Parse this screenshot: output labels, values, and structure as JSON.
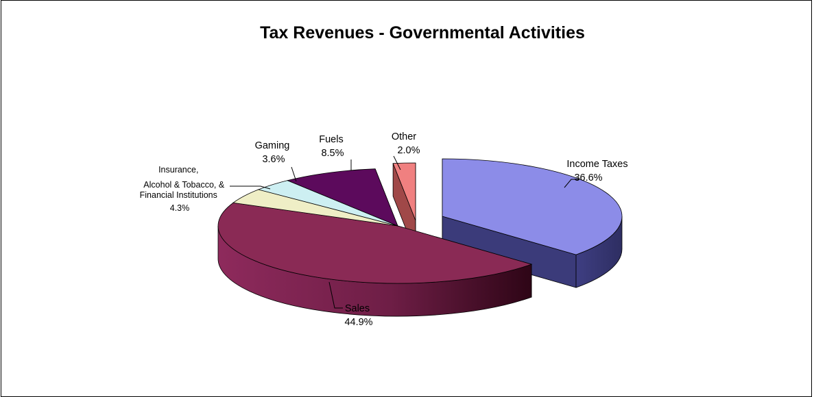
{
  "chart_data": {
    "type": "pie",
    "title": "Tax Revenues - Governmental Activities",
    "three_d": true,
    "slices": [
      {
        "label_lines": [
          "Income Taxes"
        ],
        "value_text": "36.6%",
        "value": 36.6,
        "color": "#8c8ce8",
        "side_color": "#3b3b7a",
        "exploded": true
      },
      {
        "label_lines": [
          "Sales"
        ],
        "value_text": "44.9%",
        "value": 44.9,
        "color": "#8a2a55",
        "side_color": "#4a0f28",
        "exploded": false
      },
      {
        "label_lines": [
          "Insurance,",
          "Alcohol & Tobacco, &",
          "Financial Institutions"
        ],
        "value_text": "4.3%",
        "value": 4.3,
        "color": "#efeec6",
        "side_color": "#6b6b50",
        "exploded": false
      },
      {
        "label_lines": [
          "Gaming"
        ],
        "value_text": "3.6%",
        "value": 3.6,
        "color": "#cdeff2",
        "side_color": "#5a8286",
        "exploded": false
      },
      {
        "label_lines": [
          "Fuels"
        ],
        "value_text": "8.5%",
        "value": 8.5,
        "color": "#5c0a5c",
        "side_color": "#2c002c",
        "exploded": false
      },
      {
        "label_lines": [
          "Other"
        ],
        "value_text": "2.0%",
        "value": 2.0,
        "color": "#f08080",
        "side_color": "#a04848",
        "exploded": false
      }
    ]
  }
}
